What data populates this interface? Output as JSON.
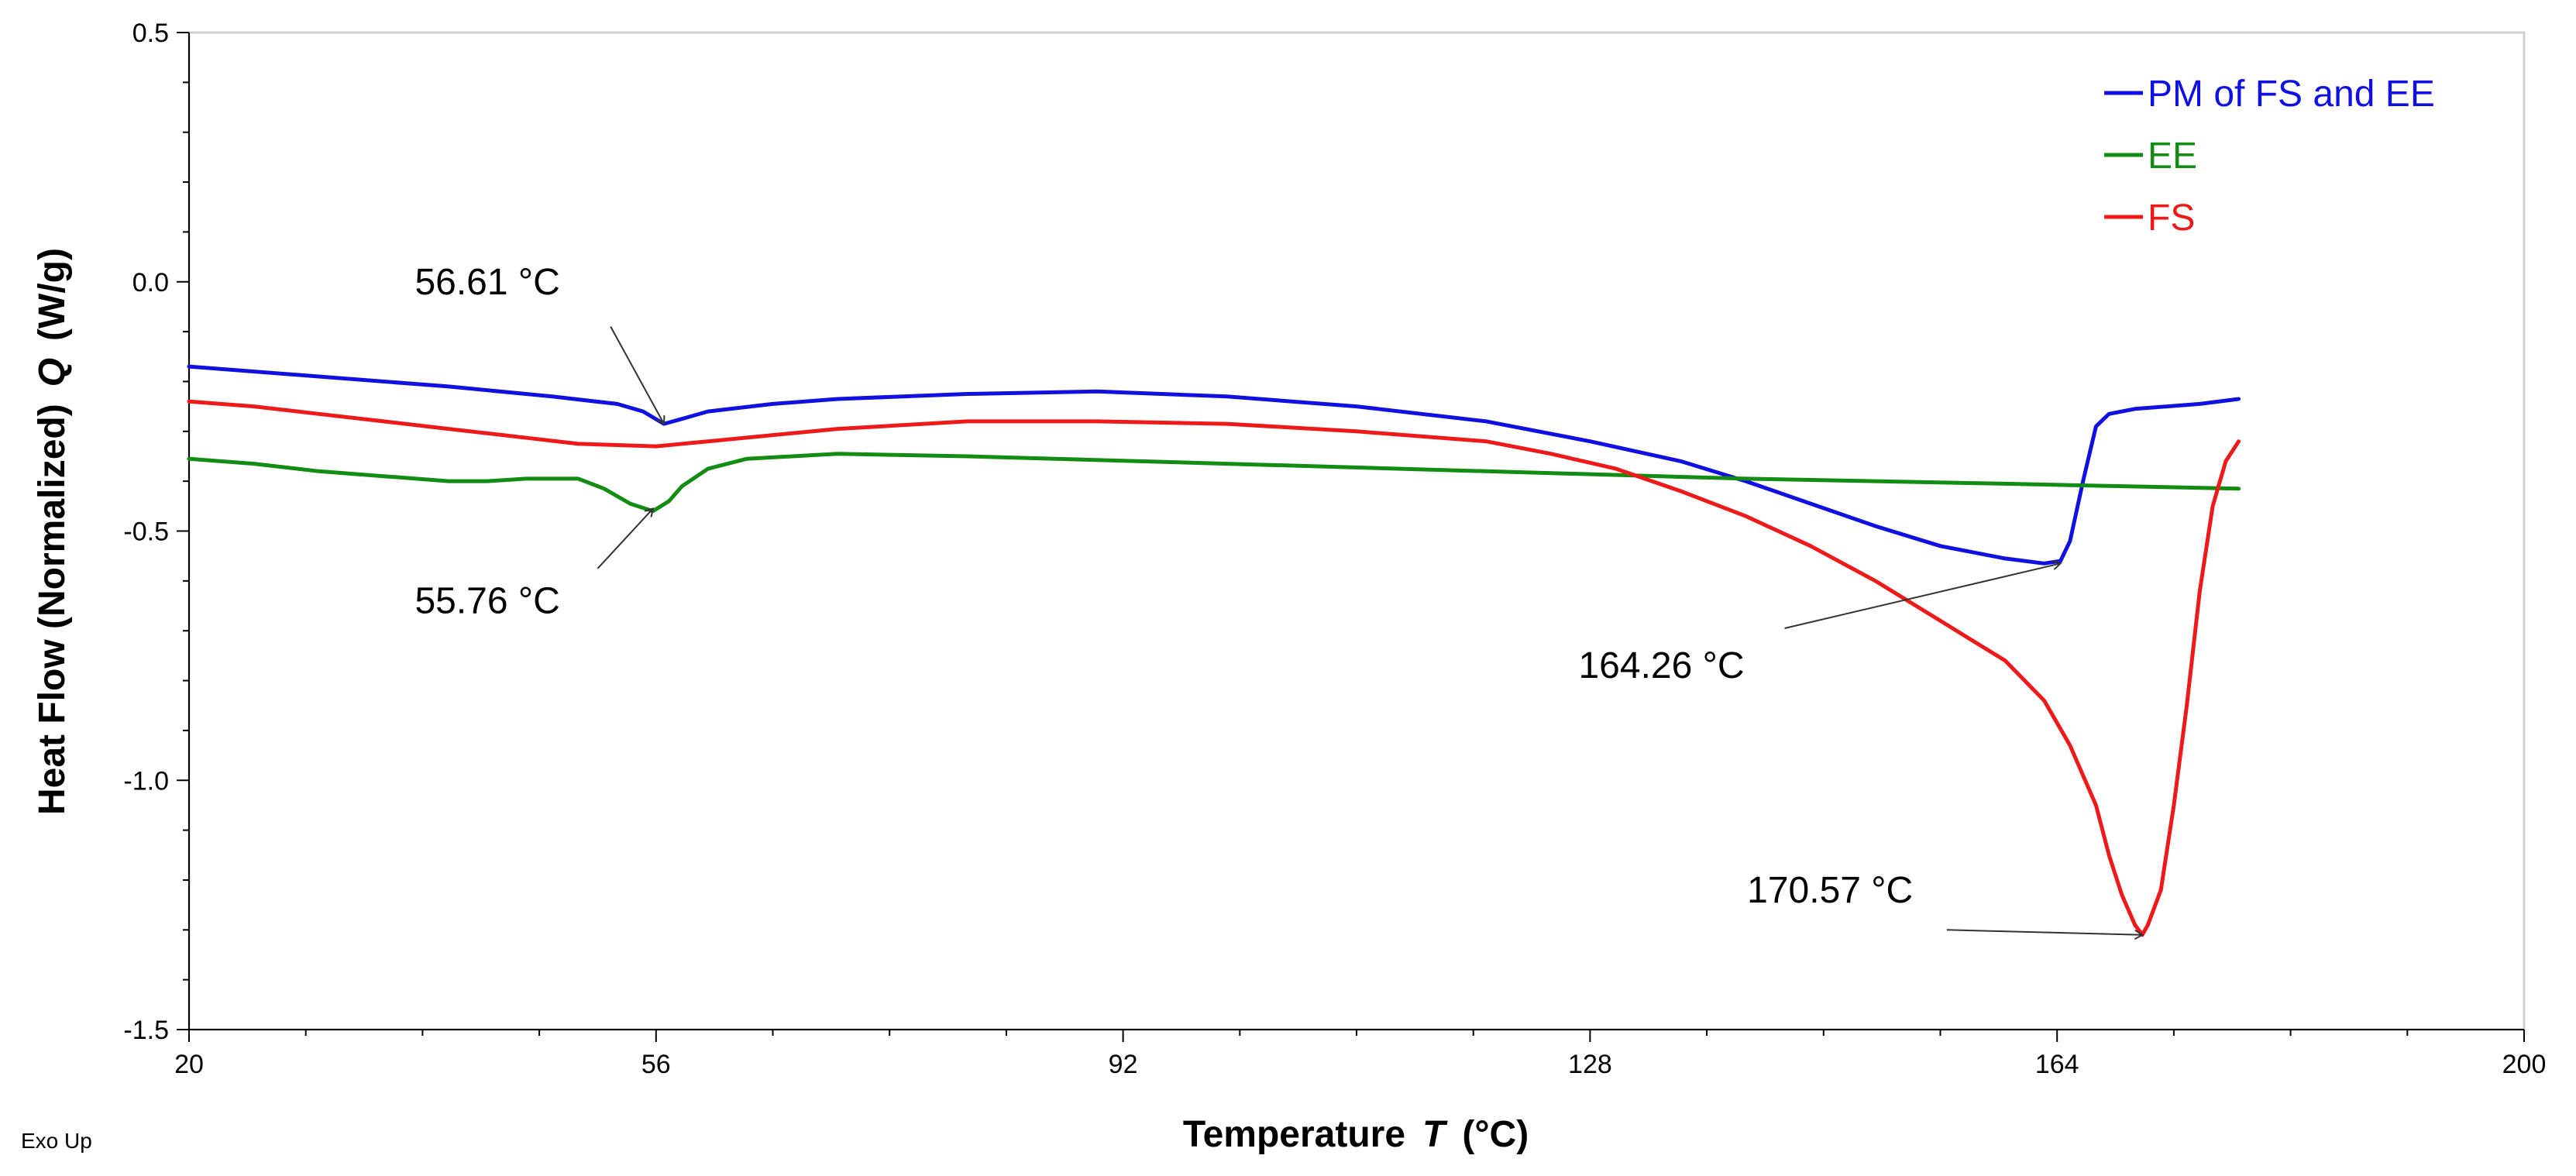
{
  "chart_data": {
    "type": "line",
    "title": "",
    "xlabel": {
      "prefix": "Temperature",
      "symbol": "T",
      "unit": "(°C)"
    },
    "ylabel": {
      "prefix": "Heat Flow (Normalized)",
      "symbol": "Q",
      "unit": "(W/g)"
    },
    "xlim": [
      20,
      200
    ],
    "ylim": [
      -1.5,
      0.5
    ],
    "x_ticks": [
      20,
      56,
      92,
      128,
      164,
      200
    ],
    "x_tick_labels": [
      "20",
      "56",
      "92",
      "128",
      "164",
      "200"
    ],
    "y_ticks": [
      0.5,
      0.0,
      -0.5,
      -1.0,
      -1.5
    ],
    "y_tick_labels": [
      "0.5",
      "0.0",
      "-0.5",
      "-1.0",
      "-1.5"
    ],
    "grid": false,
    "legend_position": "top-right",
    "series": [
      {
        "name": "PM of FS and EE",
        "color": "#1010e0",
        "x": [
          20,
          30,
          40,
          48,
          53,
          55,
          56.61,
          58,
          60,
          65,
          70,
          80,
          90,
          100,
          110,
          120,
          128,
          135,
          140,
          145,
          150,
          155,
          160,
          163,
          164.26,
          165,
          166,
          167,
          168,
          170,
          175,
          178
        ],
        "y": [
          -0.17,
          -0.19,
          -0.21,
          -0.23,
          -0.245,
          -0.26,
          -0.285,
          -0.275,
          -0.26,
          -0.245,
          -0.235,
          -0.225,
          -0.22,
          -0.23,
          -0.25,
          -0.28,
          -0.32,
          -0.36,
          -0.4,
          -0.445,
          -0.49,
          -0.53,
          -0.555,
          -0.565,
          -0.56,
          -0.52,
          -0.4,
          -0.29,
          -0.265,
          -0.255,
          -0.245,
          -0.235
        ]
      },
      {
        "name": "EE",
        "color": "#128c12",
        "x": [
          20,
          25,
          30,
          35,
          40,
          43,
          46,
          50,
          52,
          54,
          55.76,
          57,
          58,
          60,
          63,
          70,
          80,
          100,
          120,
          140,
          160,
          178
        ],
        "y": [
          -0.355,
          -0.365,
          -0.38,
          -0.39,
          -0.4,
          -0.4,
          -0.395,
          -0.395,
          -0.415,
          -0.445,
          -0.46,
          -0.44,
          -0.41,
          -0.375,
          -0.355,
          -0.345,
          -0.35,
          -0.365,
          -0.38,
          -0.395,
          -0.405,
          -0.415
        ]
      },
      {
        "name": "FS",
        "color": "#ee1a1a",
        "x": [
          20,
          25,
          30,
          35,
          40,
          45,
          50,
          56,
          60,
          70,
          80,
          90,
          100,
          110,
          120,
          125,
          130,
          135,
          140,
          145,
          150,
          155,
          160,
          163,
          165,
          167,
          168,
          169,
          170,
          170.57,
          171,
          172,
          173,
          174,
          175,
          176,
          177,
          178
        ],
        "y": [
          -0.24,
          -0.25,
          -0.265,
          -0.28,
          -0.295,
          -0.31,
          -0.325,
          -0.33,
          -0.32,
          -0.295,
          -0.28,
          -0.28,
          -0.285,
          -0.3,
          -0.32,
          -0.345,
          -0.375,
          -0.42,
          -0.47,
          -0.53,
          -0.6,
          -0.68,
          -0.76,
          -0.84,
          -0.93,
          -1.05,
          -1.15,
          -1.23,
          -1.29,
          -1.31,
          -1.29,
          -1.22,
          -1.05,
          -0.85,
          -0.62,
          -0.45,
          -0.36,
          -0.32
        ]
      }
    ],
    "annotations": [
      {
        "text": "56.61 °C",
        "target_x": 56.61,
        "target_y": -0.285,
        "label_x": 43,
        "label_y": 0.0,
        "tail_x": 52.5,
        "tail_y": -0.09,
        "align": "middle"
      },
      {
        "text": "55.76 °C",
        "target_x": 55.76,
        "target_y": -0.455,
        "label_x": 43,
        "label_y": -0.64,
        "tail_x": 51.5,
        "tail_y": -0.575,
        "align": "middle"
      },
      {
        "text": "164.26 °C",
        "target_x": 164.26,
        "target_y": -0.565,
        "label_x": 133.5,
        "label_y": -0.77,
        "tail_x": 143,
        "tail_y": -0.695,
        "align": "middle"
      },
      {
        "text": "170.57 °C",
        "target_x": 170.57,
        "target_y": -1.31,
        "label_x": 146.5,
        "label_y": -1.22,
        "tail_x": 155.5,
        "tail_y": -1.3,
        "align": "middle"
      }
    ],
    "footnote": "Exo Up"
  }
}
